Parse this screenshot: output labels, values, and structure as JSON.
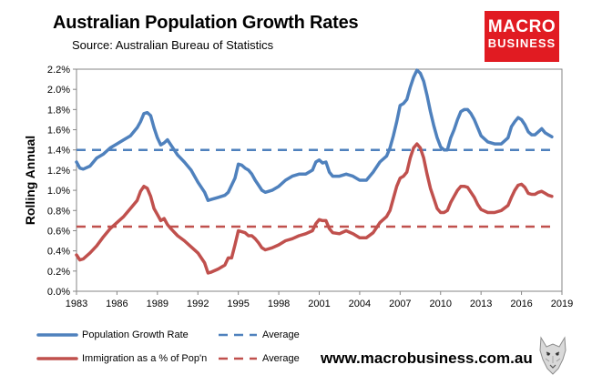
{
  "header": {
    "title": "Australian Population Growth Rates",
    "subtitle": "Source: Australian Bureau of Statistics"
  },
  "logo": {
    "line1": "MACRO",
    "line2": "BUSINESS"
  },
  "website": "www.macrobusiness.com.au",
  "chart_data": {
    "type": "line",
    "title": "Australian Population Growth Rates",
    "subtitle": "Source: Australian Bureau of Statistics",
    "xlabel": "",
    "ylabel": "Rolling Annual",
    "xlim": [
      1983,
      2019
    ],
    "ylim": [
      0,
      2.2
    ],
    "x_ticks": [
      1983,
      1986,
      1989,
      1992,
      1995,
      1998,
      2001,
      2004,
      2007,
      2010,
      2013,
      2016,
      2019
    ],
    "y_ticks": [
      0,
      0.2,
      0.4,
      0.6,
      0.8,
      1.0,
      1.2,
      1.4,
      1.6,
      1.8,
      2.0,
      2.2
    ],
    "y_tick_labels": [
      "0.0%",
      "0.2%",
      "0.4%",
      "0.6%",
      "0.8%",
      "1.0%",
      "1.2%",
      "1.4%",
      "1.6%",
      "1.8%",
      "2.0%",
      "2.2%"
    ],
    "grid": false,
    "legend_position": "bottom-left",
    "series": [
      {
        "name": "Population Growth Rate",
        "color": "#4f81bd",
        "style": "solid",
        "points": [
          [
            1983.0,
            1.28
          ],
          [
            1983.25,
            1.22
          ],
          [
            1983.5,
            1.21
          ],
          [
            1984.0,
            1.24
          ],
          [
            1984.5,
            1.32
          ],
          [
            1985.0,
            1.36
          ],
          [
            1985.5,
            1.42
          ],
          [
            1986.0,
            1.46
          ],
          [
            1986.5,
            1.5
          ],
          [
            1987.0,
            1.54
          ],
          [
            1987.5,
            1.62
          ],
          [
            1987.75,
            1.68
          ],
          [
            1988.0,
            1.76
          ],
          [
            1988.25,
            1.77
          ],
          [
            1988.5,
            1.74
          ],
          [
            1988.75,
            1.62
          ],
          [
            1989.0,
            1.52
          ],
          [
            1989.25,
            1.45
          ],
          [
            1989.5,
            1.47
          ],
          [
            1989.75,
            1.5
          ],
          [
            1990.0,
            1.45
          ],
          [
            1990.5,
            1.35
          ],
          [
            1991.0,
            1.28
          ],
          [
            1991.5,
            1.2
          ],
          [
            1992.0,
            1.08
          ],
          [
            1992.5,
            0.98
          ],
          [
            1992.75,
            0.9
          ],
          [
            1993.0,
            0.91
          ],
          [
            1993.5,
            0.93
          ],
          [
            1994.0,
            0.95
          ],
          [
            1994.25,
            0.98
          ],
          [
            1994.5,
            1.05
          ],
          [
            1994.75,
            1.12
          ],
          [
            1995.0,
            1.26
          ],
          [
            1995.25,
            1.25
          ],
          [
            1995.5,
            1.22
          ],
          [
            1995.75,
            1.2
          ],
          [
            1996.0,
            1.16
          ],
          [
            1996.25,
            1.1
          ],
          [
            1996.5,
            1.05
          ],
          [
            1996.75,
            1.0
          ],
          [
            1997.0,
            0.98
          ],
          [
            1997.5,
            1.0
          ],
          [
            1998.0,
            1.04
          ],
          [
            1998.5,
            1.1
          ],
          [
            1999.0,
            1.14
          ],
          [
            1999.5,
            1.16
          ],
          [
            2000.0,
            1.16
          ],
          [
            2000.5,
            1.2
          ],
          [
            2000.75,
            1.28
          ],
          [
            2001.0,
            1.3
          ],
          [
            2001.25,
            1.27
          ],
          [
            2001.5,
            1.28
          ],
          [
            2001.75,
            1.18
          ],
          [
            2002.0,
            1.14
          ],
          [
            2002.5,
            1.14
          ],
          [
            2003.0,
            1.16
          ],
          [
            2003.5,
            1.14
          ],
          [
            2004.0,
            1.1
          ],
          [
            2004.5,
            1.1
          ],
          [
            2005.0,
            1.18
          ],
          [
            2005.5,
            1.28
          ],
          [
            2006.0,
            1.34
          ],
          [
            2006.25,
            1.42
          ],
          [
            2006.5,
            1.54
          ],
          [
            2006.75,
            1.68
          ],
          [
            2007.0,
            1.84
          ],
          [
            2007.25,
            1.86
          ],
          [
            2007.5,
            1.9
          ],
          [
            2007.75,
            2.02
          ],
          [
            2008.0,
            2.12
          ],
          [
            2008.25,
            2.19
          ],
          [
            2008.5,
            2.16
          ],
          [
            2008.75,
            2.08
          ],
          [
            2009.0,
            1.94
          ],
          [
            2009.25,
            1.78
          ],
          [
            2009.5,
            1.64
          ],
          [
            2009.75,
            1.52
          ],
          [
            2010.0,
            1.43
          ],
          [
            2010.25,
            1.4
          ],
          [
            2010.5,
            1.4
          ],
          [
            2010.75,
            1.52
          ],
          [
            2011.0,
            1.6
          ],
          [
            2011.25,
            1.7
          ],
          [
            2011.5,
            1.78
          ],
          [
            2011.75,
            1.8
          ],
          [
            2012.0,
            1.8
          ],
          [
            2012.25,
            1.76
          ],
          [
            2012.5,
            1.7
          ],
          [
            2012.75,
            1.62
          ],
          [
            2013.0,
            1.54
          ],
          [
            2013.5,
            1.48
          ],
          [
            2014.0,
            1.46
          ],
          [
            2014.5,
            1.46
          ],
          [
            2015.0,
            1.52
          ],
          [
            2015.25,
            1.63
          ],
          [
            2015.5,
            1.68
          ],
          [
            2015.75,
            1.72
          ],
          [
            2016.0,
            1.7
          ],
          [
            2016.25,
            1.65
          ],
          [
            2016.5,
            1.58
          ],
          [
            2016.75,
            1.55
          ],
          [
            2017.0,
            1.55
          ],
          [
            2017.25,
            1.58
          ],
          [
            2017.5,
            1.61
          ],
          [
            2017.75,
            1.57
          ],
          [
            2018.0,
            1.55
          ],
          [
            2018.25,
            1.53
          ]
        ]
      },
      {
        "name": "Average",
        "color": "#4f81bd",
        "style": "dashed",
        "points": [
          [
            1983.0,
            1.4
          ],
          [
            2018.25,
            1.4
          ]
        ]
      },
      {
        "name": "Immigration as a % of Pop'n",
        "color": "#c0504d",
        "style": "solid",
        "points": [
          [
            1983.0,
            0.36
          ],
          [
            1983.25,
            0.31
          ],
          [
            1983.5,
            0.32
          ],
          [
            1984.0,
            0.38
          ],
          [
            1984.5,
            0.45
          ],
          [
            1985.0,
            0.54
          ],
          [
            1985.5,
            0.62
          ],
          [
            1986.0,
            0.68
          ],
          [
            1986.5,
            0.74
          ],
          [
            1987.0,
            0.82
          ],
          [
            1987.5,
            0.9
          ],
          [
            1987.75,
            0.99
          ],
          [
            1988.0,
            1.04
          ],
          [
            1988.25,
            1.02
          ],
          [
            1988.5,
            0.94
          ],
          [
            1988.75,
            0.82
          ],
          [
            1989.0,
            0.76
          ],
          [
            1989.25,
            0.7
          ],
          [
            1989.5,
            0.72
          ],
          [
            1989.75,
            0.66
          ],
          [
            1990.0,
            0.62
          ],
          [
            1990.5,
            0.55
          ],
          [
            1991.0,
            0.5
          ],
          [
            1991.5,
            0.44
          ],
          [
            1992.0,
            0.38
          ],
          [
            1992.5,
            0.28
          ],
          [
            1992.75,
            0.18
          ],
          [
            1993.0,
            0.19
          ],
          [
            1993.5,
            0.22
          ],
          [
            1994.0,
            0.26
          ],
          [
            1994.25,
            0.33
          ],
          [
            1994.5,
            0.33
          ],
          [
            1994.75,
            0.46
          ],
          [
            1995.0,
            0.6
          ],
          [
            1995.25,
            0.59
          ],
          [
            1995.5,
            0.58
          ],
          [
            1995.75,
            0.55
          ],
          [
            1996.0,
            0.55
          ],
          [
            1996.25,
            0.52
          ],
          [
            1996.5,
            0.48
          ],
          [
            1996.75,
            0.43
          ],
          [
            1997.0,
            0.41
          ],
          [
            1997.5,
            0.43
          ],
          [
            1998.0,
            0.46
          ],
          [
            1998.5,
            0.5
          ],
          [
            1999.0,
            0.52
          ],
          [
            1999.5,
            0.55
          ],
          [
            2000.0,
            0.57
          ],
          [
            2000.5,
            0.6
          ],
          [
            2000.75,
            0.67
          ],
          [
            2001.0,
            0.71
          ],
          [
            2001.25,
            0.7
          ],
          [
            2001.5,
            0.7
          ],
          [
            2001.75,
            0.62
          ],
          [
            2002.0,
            0.58
          ],
          [
            2002.5,
            0.57
          ],
          [
            2003.0,
            0.6
          ],
          [
            2003.5,
            0.57
          ],
          [
            2004.0,
            0.53
          ],
          [
            2004.5,
            0.53
          ],
          [
            2005.0,
            0.58
          ],
          [
            2005.5,
            0.68
          ],
          [
            2006.0,
            0.74
          ],
          [
            2006.25,
            0.8
          ],
          [
            2006.5,
            0.92
          ],
          [
            2006.75,
            1.04
          ],
          [
            2007.0,
            1.12
          ],
          [
            2007.25,
            1.14
          ],
          [
            2007.5,
            1.18
          ],
          [
            2007.75,
            1.32
          ],
          [
            2008.0,
            1.42
          ],
          [
            2008.25,
            1.46
          ],
          [
            2008.5,
            1.42
          ],
          [
            2008.75,
            1.32
          ],
          [
            2009.0,
            1.16
          ],
          [
            2009.25,
            1.02
          ],
          [
            2009.5,
            0.92
          ],
          [
            2009.75,
            0.82
          ],
          [
            2010.0,
            0.78
          ],
          [
            2010.25,
            0.78
          ],
          [
            2010.5,
            0.8
          ],
          [
            2010.75,
            0.88
          ],
          [
            2011.0,
            0.94
          ],
          [
            2011.25,
            1.0
          ],
          [
            2011.5,
            1.04
          ],
          [
            2011.75,
            1.04
          ],
          [
            2012.0,
            1.03
          ],
          [
            2012.25,
            0.98
          ],
          [
            2012.5,
            0.93
          ],
          [
            2012.75,
            0.86
          ],
          [
            2013.0,
            0.81
          ],
          [
            2013.5,
            0.78
          ],
          [
            2014.0,
            0.78
          ],
          [
            2014.5,
            0.8
          ],
          [
            2015.0,
            0.85
          ],
          [
            2015.25,
            0.93
          ],
          [
            2015.5,
            1.0
          ],
          [
            2015.75,
            1.05
          ],
          [
            2016.0,
            1.06
          ],
          [
            2016.25,
            1.03
          ],
          [
            2016.5,
            0.97
          ],
          [
            2016.75,
            0.96
          ],
          [
            2017.0,
            0.96
          ],
          [
            2017.25,
            0.98
          ],
          [
            2017.5,
            0.99
          ],
          [
            2017.75,
            0.97
          ],
          [
            2018.0,
            0.95
          ],
          [
            2018.25,
            0.94
          ]
        ]
      },
      {
        "name": "Average",
        "color": "#c0504d",
        "style": "dashed",
        "points": [
          [
            1983.0,
            0.64
          ],
          [
            2018.25,
            0.64
          ]
        ]
      }
    ]
  }
}
